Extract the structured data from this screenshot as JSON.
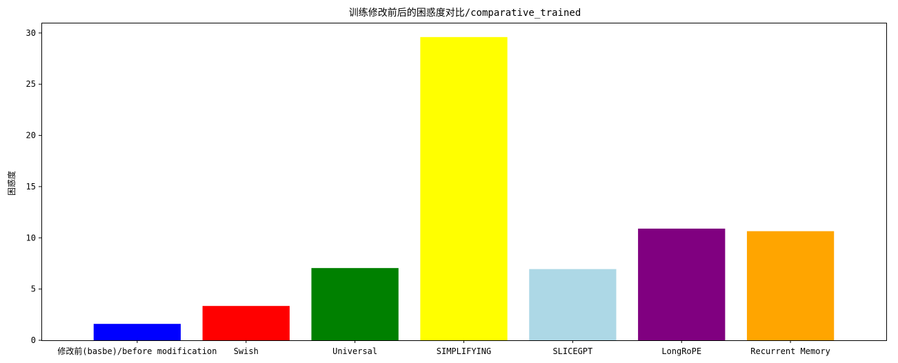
{
  "chart_data": {
    "type": "bar",
    "title": "训练修改前后的困惑度对比/comparative_trained",
    "xlabel": "",
    "ylabel": "困惑度",
    "categories": [
      "修改前(basbe)/before modification",
      "Swish",
      "Universal",
      "SIMPLIFYING",
      "SLICEGPT",
      "LongRoPE",
      "Recurrent Memory"
    ],
    "values": [
      1.6,
      3.35,
      7.05,
      29.6,
      6.95,
      10.9,
      10.65
    ],
    "colors": [
      "#0000ff",
      "#ff0000",
      "#008000",
      "#ffff00",
      "#add8e6",
      "#800080",
      "#ffa500"
    ],
    "ylim": [
      0,
      31
    ],
    "yticks": [
      0,
      5,
      10,
      15,
      20,
      25,
      30
    ],
    "grid": false,
    "legend": "none"
  }
}
